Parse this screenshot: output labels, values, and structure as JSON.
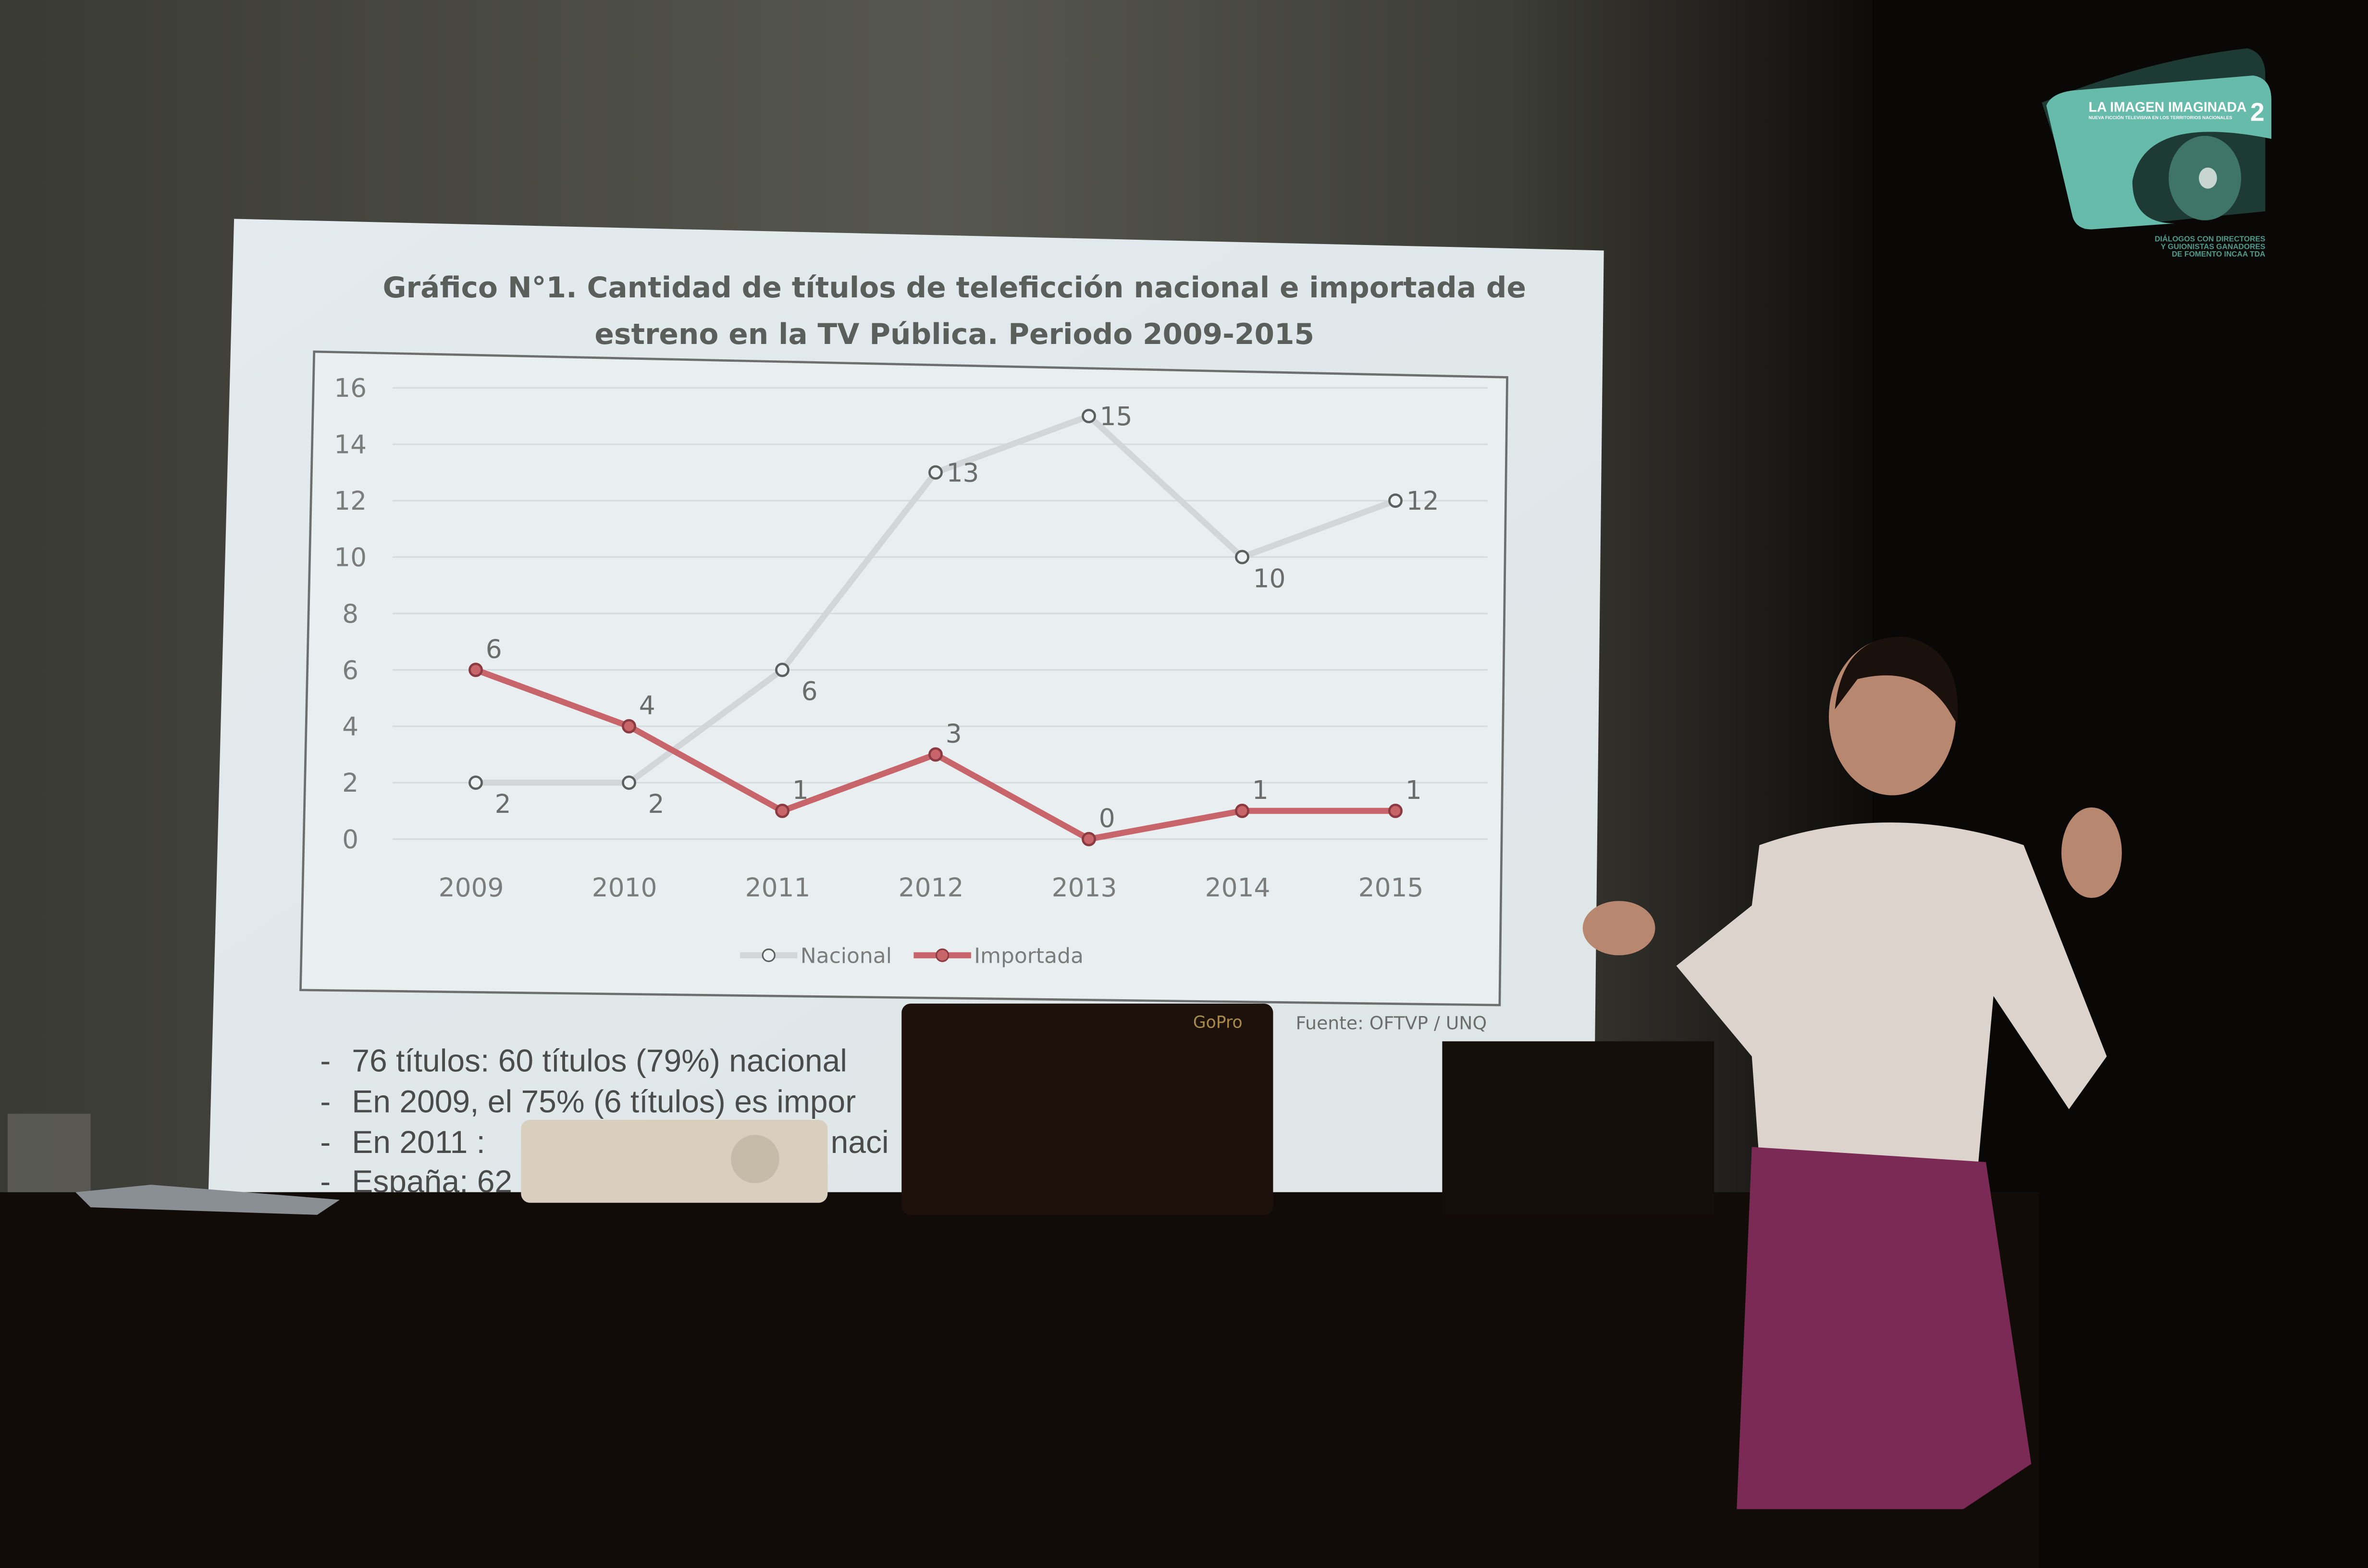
{
  "slide": {
    "title_line1": "Gráfico N°1. Cantidad de títulos de teleficción nacional e importada de",
    "title_line2": "estreno en la TV Pública. Periodo 2009-2015",
    "source": "Fuente: OFTVP / UNQ",
    "bullets": [
      "76 títulos: 60 títulos (79%) nacional",
      "En 2009, el 75% (6 títulos) es impor",
      "En 2011 :",
      "España: 62"
    ],
    "bullet_fragment_2011": "naci",
    "bullet_dash": "-"
  },
  "chart_data": {
    "type": "line",
    "title": "Gráfico N°1. Cantidad de títulos de teleficción nacional e importada de estreno en la TV Pública. Periodo 2009-2015",
    "categories": [
      "2009",
      "2010",
      "2011",
      "2012",
      "2013",
      "2014",
      "2015"
    ],
    "yticks": [
      "0",
      "2",
      "4",
      "6",
      "8",
      "10",
      "12",
      "14",
      "16"
    ],
    "ylim": [
      0,
      16
    ],
    "grid": true,
    "legend_position": "bottom",
    "series": [
      {
        "name": "Nacional",
        "values": [
          2,
          2,
          6,
          13,
          15,
          10,
          12
        ],
        "color": "#d3d6d8"
      },
      {
        "name": "Importada",
        "values": [
          6,
          4,
          1,
          3,
          0,
          1,
          1
        ],
        "color": "#c8656b"
      }
    ]
  },
  "logo": {
    "title": "LA IMAGEN IMAGINADA",
    "number": "2",
    "subtitle": "NUEVA FICCIÓN TELEVISIVA EN LOS TERRITORIOS NACIONALES",
    "tagline": [
      "DIÁLOGOS CON DIRECTORES",
      "Y GUIONISTAS GANADORES",
      "DE FOMENTO INCAA TDA"
    ],
    "color": "#67bbaa"
  },
  "laptop": {
    "brand": "GoPro"
  }
}
